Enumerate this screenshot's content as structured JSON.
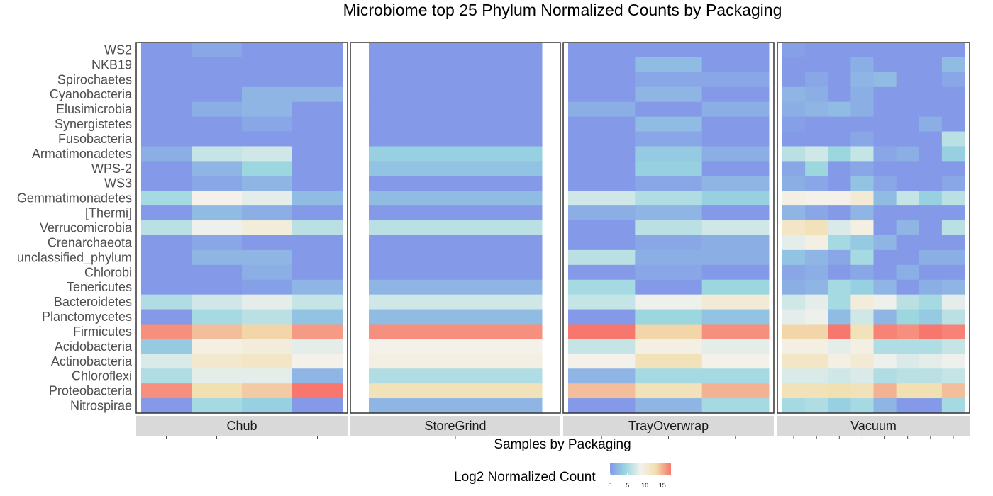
{
  "chart_data": {
    "type": "heatmap",
    "title": "Microbiome top 25 Phylum Normalized Counts by Packaging",
    "xlabel": "Samples by Packaging",
    "legend": {
      "title": "Log2 Normalized Count",
      "ticks": [
        0,
        5,
        10,
        15
      ],
      "range": [
        0,
        17.5
      ],
      "colors": [
        "#8499e8",
        "#99d6e0",
        "#f3f2ec",
        "#f1dfb0",
        "#f7776e"
      ],
      "placement": "bottom"
    },
    "phyla": [
      "WS2",
      "NKB19",
      "Spirochaetes",
      "Cyanobacteria",
      "Elusimicrobia",
      "Synergistetes",
      "Fusobacteria",
      "Armatimonadetes",
      "WPS-2",
      "WS3",
      "Gemmatimonadetes",
      "[Thermi]",
      "Verrucomicrobia",
      "Crenarchaeota",
      "unclassified_phylum",
      "Chlorobi",
      "Tenericutes",
      "Bacteroidetes",
      "Planctomycetes",
      "Firmicutes",
      "Acidobacteria",
      "Actinobacteria",
      "Chloroflexi",
      "Proteobacteria",
      "Nitrospirae"
    ],
    "panels": [
      {
        "name": "Chub",
        "samples": 4,
        "values": [
          [
            0,
            1,
            0,
            0
          ],
          [
            0,
            0,
            0,
            0
          ],
          [
            0,
            0,
            0,
            0
          ],
          [
            0,
            0,
            2,
            2
          ],
          [
            0,
            1.5,
            2,
            0
          ],
          [
            0,
            0,
            1,
            0
          ],
          [
            0,
            0,
            0,
            0
          ],
          [
            1.5,
            6.5,
            7,
            0
          ],
          [
            0,
            2,
            4.5,
            0
          ],
          [
            0,
            1,
            2,
            0
          ],
          [
            5,
            9,
            8,
            2.5
          ],
          [
            0,
            2.5,
            1.5,
            0
          ],
          [
            6,
            8.5,
            10,
            6
          ],
          [
            0,
            1,
            0,
            0
          ],
          [
            0,
            2,
            2,
            0
          ],
          [
            0,
            0,
            1.5,
            0
          ],
          [
            0,
            0,
            0.5,
            2
          ],
          [
            5.5,
            7,
            8,
            6.5
          ],
          [
            0,
            5,
            6,
            3
          ],
          [
            16.5,
            14.5,
            13.5,
            16
          ],
          [
            3.5,
            9.5,
            10,
            8
          ],
          [
            7.5,
            11,
            11.5,
            9
          ],
          [
            5.5,
            8,
            8,
            2
          ],
          [
            16.5,
            13,
            14,
            18.5
          ],
          [
            0,
            5,
            4,
            0
          ]
        ]
      },
      {
        "name": "StoreGrind",
        "samples": 1,
        "values": [
          [
            0
          ],
          [
            0
          ],
          [
            0
          ],
          [
            0
          ],
          [
            0
          ],
          [
            0
          ],
          [
            0
          ],
          [
            4
          ],
          [
            3
          ],
          [
            0
          ],
          [
            2.5
          ],
          [
            0
          ],
          [
            6
          ],
          [
            0
          ],
          [
            0
          ],
          [
            0
          ],
          [
            2
          ],
          [
            7
          ],
          [
            2.5
          ],
          [
            16.5
          ],
          [
            9
          ],
          [
            9.5
          ],
          [
            5.5
          ],
          [
            12.5
          ],
          [
            2
          ]
        ]
      },
      {
        "name": "TrayOverwrap",
        "samples": 3,
        "values": [
          [
            0,
            0,
            0
          ],
          [
            0,
            2.5,
            0
          ],
          [
            0,
            1,
            1
          ],
          [
            0,
            2,
            0
          ],
          [
            1.5,
            0,
            1.5
          ],
          [
            0,
            2.5,
            0
          ],
          [
            0,
            1,
            0
          ],
          [
            0,
            3.5,
            1.5
          ],
          [
            0,
            4,
            0
          ],
          [
            0,
            1,
            2
          ],
          [
            7,
            5.5,
            4
          ],
          [
            1.5,
            2,
            0
          ],
          [
            0,
            6,
            7
          ],
          [
            0,
            1,
            1.5
          ],
          [
            6,
            1.5,
            1.5
          ],
          [
            0,
            1,
            0
          ],
          [
            5,
            0,
            4.5
          ],
          [
            6.5,
            8.5,
            10.5
          ],
          [
            0,
            4.5,
            3
          ],
          [
            17.5,
            13.5,
            16.5
          ],
          [
            6.5,
            9.5,
            8
          ],
          [
            9,
            12.5,
            9
          ],
          [
            2,
            5,
            5
          ],
          [
            14.5,
            12.5,
            15
          ],
          [
            0,
            2,
            5
          ]
        ]
      },
      {
        "name": "Vacuum",
        "samples": 8,
        "values": [
          [
            0.5,
            0,
            0,
            0,
            0,
            0,
            0,
            0
          ],
          [
            0,
            0,
            0,
            1.5,
            0,
            0,
            0,
            2.5
          ],
          [
            0,
            1,
            0,
            2,
            2.5,
            0,
            0,
            1
          ],
          [
            2,
            1.5,
            0,
            1.5,
            0,
            0,
            0,
            0
          ],
          [
            1.5,
            2,
            2.5,
            1.5,
            0,
            0,
            0,
            0
          ],
          [
            0.5,
            0,
            0,
            0,
            0,
            0,
            1.5,
            0
          ],
          [
            0,
            0,
            0,
            1,
            0,
            0,
            0,
            6
          ],
          [
            6,
            7,
            4.5,
            6.5,
            1,
            1.5,
            0,
            4
          ],
          [
            1,
            4.5,
            0,
            1,
            0,
            0,
            0,
            0
          ],
          [
            1.5,
            1,
            0,
            3,
            1,
            0,
            0,
            1
          ],
          [
            9.5,
            9,
            9,
            10.5,
            2.5,
            6.5,
            4,
            6
          ],
          [
            2,
            1,
            0,
            2,
            0,
            0,
            0,
            0
          ],
          [
            11.5,
            12.5,
            7.5,
            9.5,
            0,
            2,
            0,
            6
          ],
          [
            8,
            9.5,
            5,
            3.5,
            2,
            0,
            0,
            0
          ],
          [
            3,
            2,
            1,
            5,
            0,
            0,
            1.5,
            1.5
          ],
          [
            1,
            1.5,
            0,
            1,
            0,
            1.5,
            0,
            0
          ],
          [
            1.5,
            2,
            5,
            4,
            2,
            0,
            1.5,
            2
          ],
          [
            7,
            8,
            5,
            10,
            8.5,
            6,
            5,
            8
          ],
          [
            8,
            8.5,
            2.5,
            7,
            2,
            4.5,
            3.5,
            6
          ],
          [
            13.5,
            13.5,
            17.5,
            12.5,
            17,
            16.5,
            17.5,
            17
          ],
          [
            9.5,
            9.5,
            8,
            9.5,
            5.5,
            5.5,
            5.5,
            6.5
          ],
          [
            11.5,
            11.5,
            9.5,
            10.5,
            8.5,
            7.5,
            8,
            8.5
          ],
          [
            7.5,
            7.5,
            7,
            7.5,
            5.5,
            6,
            6,
            6.5
          ],
          [
            12.5,
            12.5,
            13,
            12.5,
            15,
            13,
            13,
            14.5
          ],
          [
            5,
            5.5,
            4,
            5,
            2,
            0,
            0,
            5
          ]
        ]
      }
    ]
  }
}
